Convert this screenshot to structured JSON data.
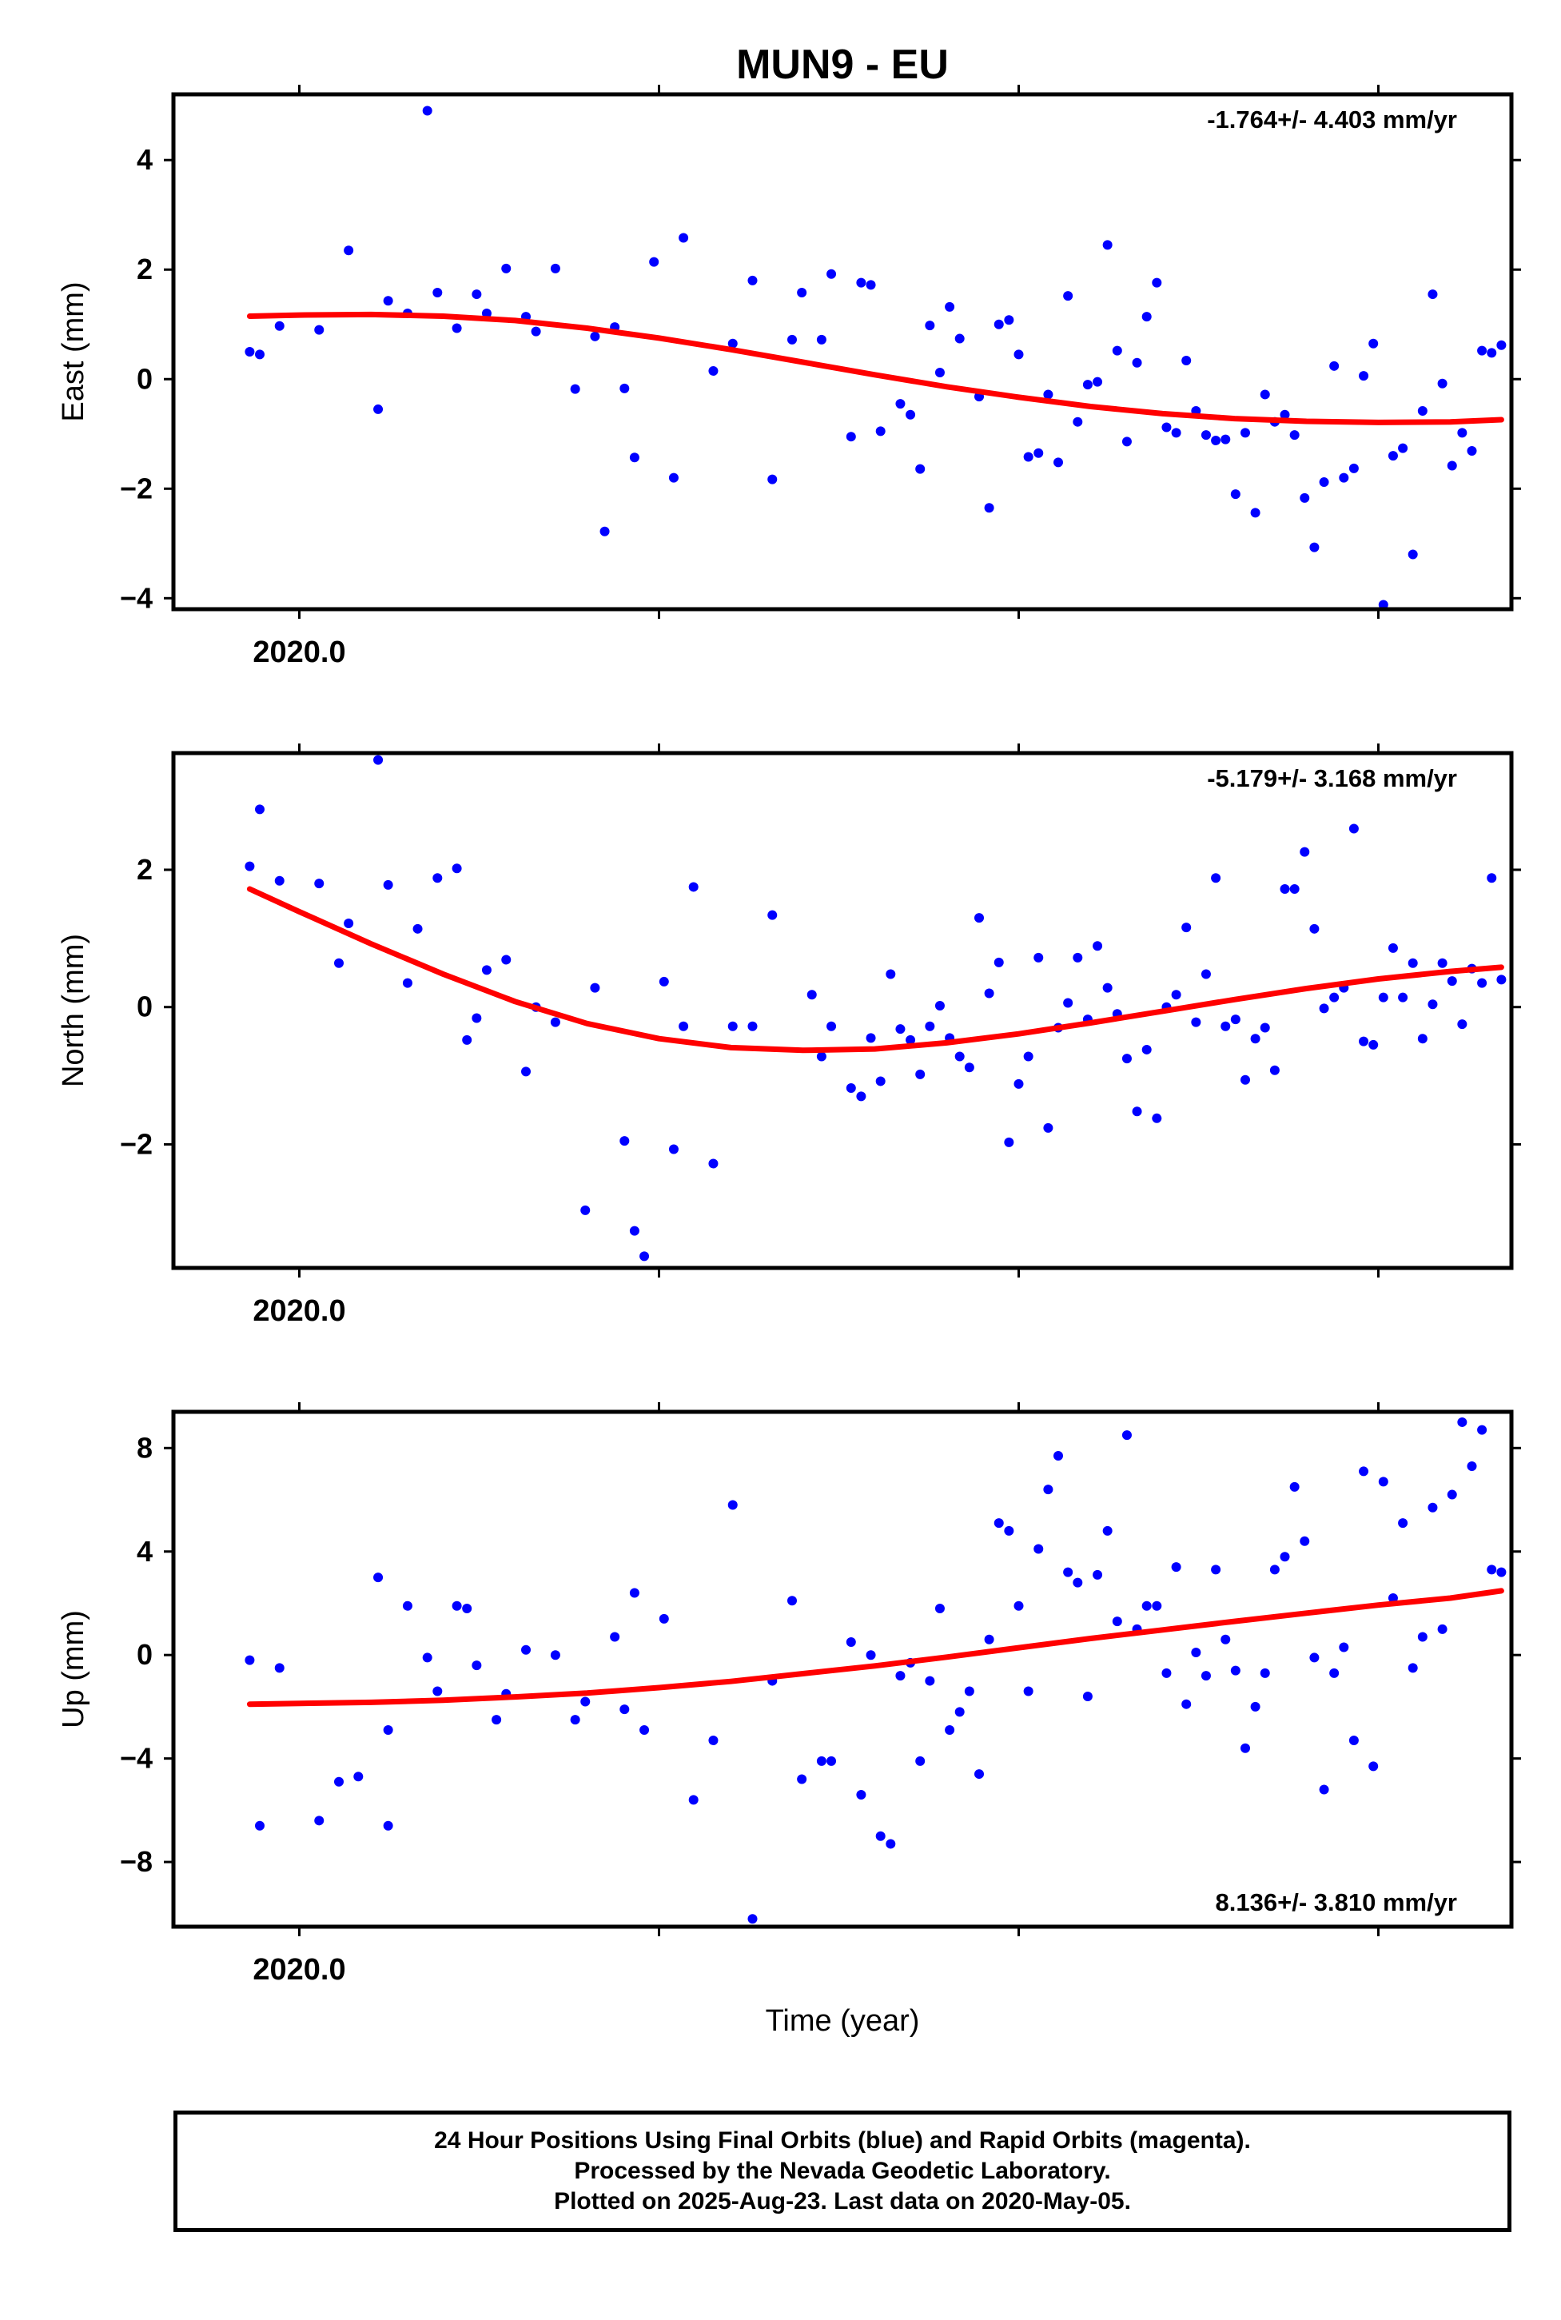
{
  "title": "MUN9 - EU",
  "xlabel": "Time (year)",
  "footer": {
    "line1": "24 Hour Positions Using Final Orbits (blue) and Rapid Orbits (magenta).",
    "line2": "Processed by the Nevada Geodetic Laboratory.",
    "line3": "Plotted on 2025-Aug-23. Last data on 2020-May-05."
  },
  "colors": {
    "points": "#0000ff",
    "fit": "#ff0000",
    "frame": "#000000"
  },
  "chart_data": [
    {
      "type": "scatter",
      "ylabel": "East (mm)",
      "rate_label": "-1.764+/- 4.403 mm/yr",
      "rate_position": "top-right",
      "xlim": [
        2019.965,
        2020.337
      ],
      "ylim": [
        -4.2,
        5.2
      ],
      "y_ticks": [
        -4,
        -2,
        0,
        2,
        4
      ],
      "x_tick_labels": [
        {
          "x": 2020.0,
          "label": "2020.0"
        }
      ],
      "x_minor_ticks": [
        2020.0,
        2020.1,
        2020.2,
        2020.3
      ],
      "series": [
        {
          "kind": "points",
          "x": [
            2019.9862,
            2019.989,
            2019.9945,
            2020.0055,
            2020.0137,
            2020.0219,
            2020.0247,
            2020.0301,
            2020.0356,
            2020.0384,
            2020.0438,
            2020.0493,
            2020.0521,
            2020.0575,
            2020.063,
            2020.0658,
            2020.0712,
            2020.0767,
            2020.0822,
            2020.0849,
            2020.0877,
            2020.0904,
            2020.0932,
            2020.0986,
            2020.1041,
            2020.1068,
            2020.1151,
            2020.1205,
            2020.126,
            2020.1315,
            2020.137,
            2020.1397,
            2020.1452,
            2020.1479,
            2020.1534,
            2020.1562,
            2020.1589,
            2020.1616,
            2020.1671,
            2020.1699,
            2020.1726,
            2020.1753,
            2020.1781,
            2020.1808,
            2020.1836,
            2020.189,
            2020.1918,
            2020.1945,
            2020.1973,
            2020.2,
            2020.2027,
            2020.2055,
            2020.2082,
            2020.211,
            2020.2137,
            2020.2164,
            2020.2192,
            2020.2219,
            2020.2247,
            2020.2274,
            2020.2301,
            2020.2329,
            2020.2356,
            2020.2384,
            2020.2411,
            2020.2438,
            2020.2466,
            2020.2493,
            2020.2521,
            2020.2548,
            2020.2575,
            2020.2603,
            2020.263,
            2020.2658,
            2020.2685,
            2020.2712,
            2020.274,
            2020.2767,
            2020.2795,
            2020.2822,
            2020.2849,
            2020.2877,
            2020.2904,
            2020.2932,
            2020.2959,
            2020.2986,
            2020.3014,
            2020.3041,
            2020.3068,
            2020.3096,
            2020.3123,
            2020.3151,
            2020.3178,
            2020.3205,
            2020.3233,
            2020.326,
            2020.3288,
            2020.3315,
            2020.3342
          ],
          "y": [
            0.5,
            0.45,
            0.97,
            0.9,
            2.35,
            -0.55,
            1.43,
            1.2,
            4.9,
            1.58,
            0.93,
            1.55,
            1.2,
            2.02,
            1.14,
            0.87,
            2.02,
            -0.18,
            0.78,
            -2.78,
            0.95,
            -0.17,
            -1.43,
            2.14,
            -1.8,
            2.58,
            0.15,
            0.65,
            1.8,
            -1.83,
            0.72,
            1.58,
            0.72,
            1.92,
            -1.05,
            1.76,
            1.72,
            -0.95,
            -0.45,
            -0.65,
            -1.64,
            0.98,
            0.12,
            1.32,
            0.74,
            -0.32,
            -2.35,
            1.0,
            1.08,
            0.45,
            -1.42,
            -1.35,
            -0.28,
            -1.52,
            1.52,
            -0.78,
            -0.1,
            -0.05,
            2.45,
            0.52,
            -1.14,
            0.3,
            1.14,
            1.76,
            -0.88,
            -0.98,
            0.34,
            -0.58,
            -1.02,
            -1.12,
            -1.1,
            -2.1,
            -0.98,
            -2.44,
            -0.28,
            -0.78,
            -0.65,
            -1.02,
            -2.17,
            -3.07,
            -1.88,
            0.24,
            -1.8,
            -1.63,
            0.06,
            0.65,
            -4.12,
            -1.4,
            -1.26,
            -3.2,
            -0.58,
            1.55,
            -0.08,
            -1.58,
            -0.98,
            -1.31,
            0.52,
            0.48,
            0.62
          ]
        },
        {
          "kind": "fit",
          "x": [
            2019.9862,
            2020.0,
            2020.02,
            2020.04,
            2020.06,
            2020.08,
            2020.1,
            2020.12,
            2020.14,
            2020.16,
            2020.18,
            2020.2,
            2020.22,
            2020.24,
            2020.26,
            2020.28,
            2020.3,
            2020.32,
            2020.3342
          ],
          "y": [
            1.15,
            1.17,
            1.18,
            1.15,
            1.07,
            0.93,
            0.75,
            0.54,
            0.31,
            0.08,
            -0.14,
            -0.33,
            -0.5,
            -0.63,
            -0.72,
            -0.77,
            -0.79,
            -0.78,
            -0.74
          ]
        }
      ]
    },
    {
      "type": "scatter",
      "ylabel": "North (mm)",
      "rate_label": "-5.179+/- 3.168 mm/yr",
      "rate_position": "top-right",
      "xlim": [
        2019.965,
        2020.337
      ],
      "ylim": [
        -3.8,
        3.7
      ],
      "y_ticks": [
        -2,
        0,
        2
      ],
      "x_tick_labels": [
        {
          "x": 2020.0,
          "label": "2020.0"
        }
      ],
      "x_minor_ticks": [
        2020.0,
        2020.1,
        2020.2,
        2020.3
      ],
      "series": [
        {
          "kind": "points",
          "x": [
            2019.9862,
            2019.989,
            2019.9945,
            2020.0055,
            2020.011,
            2020.0137,
            2020.0219,
            2020.0247,
            2020.0301,
            2020.0329,
            2020.0384,
            2020.0438,
            2020.0466,
            2020.0493,
            2020.0521,
            2020.0575,
            2020.063,
            2020.0658,
            2020.0712,
            2020.0795,
            2020.0822,
            2020.0904,
            2020.0932,
            2020.0959,
            2020.1014,
            2020.1041,
            2020.1068,
            2020.1096,
            2020.1151,
            2020.1205,
            2020.126,
            2020.1315,
            2020.1425,
            2020.1452,
            2020.1479,
            2020.1534,
            2020.1562,
            2020.1589,
            2020.1616,
            2020.1644,
            2020.1671,
            2020.1699,
            2020.1726,
            2020.1753,
            2020.1781,
            2020.1808,
            2020.1836,
            2020.1863,
            2020.189,
            2020.1918,
            2020.1945,
            2020.1973,
            2020.2,
            2020.2027,
            2020.2055,
            2020.2082,
            2020.211,
            2020.2137,
            2020.2164,
            2020.2192,
            2020.2219,
            2020.2247,
            2020.2274,
            2020.2301,
            2020.2329,
            2020.2356,
            2020.2384,
            2020.2411,
            2020.2438,
            2020.2466,
            2020.2493,
            2020.2521,
            2020.2548,
            2020.2575,
            2020.2603,
            2020.263,
            2020.2658,
            2020.2685,
            2020.2712,
            2020.274,
            2020.2767,
            2020.2795,
            2020.2822,
            2020.2849,
            2020.2877,
            2020.2904,
            2020.2932,
            2020.2959,
            2020.2986,
            2020.3014,
            2020.3041,
            2020.3068,
            2020.3096,
            2020.3123,
            2020.3151,
            2020.3178,
            2020.3205,
            2020.3233,
            2020.326,
            2020.3288,
            2020.3315,
            2020.3342
          ],
          "y": [
            2.05,
            2.88,
            1.84,
            1.8,
            0.64,
            1.22,
            3.6,
            1.78,
            0.35,
            1.14,
            1.88,
            2.02,
            -0.48,
            -0.16,
            0.54,
            0.69,
            -0.94,
            0.0,
            -0.22,
            -2.96,
            0.28,
            -1.95,
            -3.26,
            -3.63,
            0.37,
            -2.07,
            -0.28,
            1.75,
            -2.28,
            -0.28,
            -0.28,
            1.34,
            0.18,
            -0.72,
            -0.28,
            -1.18,
            -1.3,
            -0.45,
            -1.08,
            0.48,
            -0.32,
            -0.48,
            -0.98,
            -0.28,
            0.02,
            -0.45,
            -0.72,
            -0.88,
            1.3,
            0.2,
            0.65,
            -1.97,
            -1.12,
            -0.72,
            0.72,
            -1.76,
            -0.3,
            0.06,
            0.72,
            -0.18,
            0.89,
            0.28,
            -0.1,
            -0.75,
            -1.52,
            -0.62,
            -1.62,
            0.0,
            0.18,
            1.16,
            -0.22,
            0.48,
            1.88,
            -0.28,
            -0.18,
            -1.06,
            -0.46,
            -0.3,
            -0.92,
            1.72,
            1.72,
            2.26,
            1.14,
            -0.02,
            0.14,
            0.28,
            2.6,
            -0.5,
            -0.55,
            0.14,
            0.86,
            0.14,
            0.64,
            -0.46,
            0.04,
            0.64,
            0.38,
            -0.25,
            0.56,
            0.35,
            1.88,
            0.4
          ]
        },
        {
          "kind": "fit",
          "x": [
            2019.9862,
            2020.0,
            2020.02,
            2020.04,
            2020.06,
            2020.08,
            2020.1,
            2020.12,
            2020.14,
            2020.16,
            2020.18,
            2020.2,
            2020.22,
            2020.24,
            2020.26,
            2020.28,
            2020.3,
            2020.32,
            2020.3342
          ],
          "y": [
            1.72,
            1.39,
            0.92,
            0.48,
            0.08,
            -0.24,
            -0.46,
            -0.59,
            -0.63,
            -0.61,
            -0.52,
            -0.39,
            -0.23,
            -0.06,
            0.11,
            0.27,
            0.41,
            0.52,
            0.58
          ]
        }
      ]
    },
    {
      "type": "scatter",
      "ylabel": "Up (mm)",
      "rate_label": "8.136+/- 3.810 mm/yr",
      "rate_position": "bottom-right",
      "xlim": [
        2019.965,
        2020.337
      ],
      "ylim": [
        -10.5,
        9.4
      ],
      "y_ticks": [
        -8,
        -4,
        0,
        4,
        8
      ],
      "x_tick_labels": [
        {
          "x": 2020.0,
          "label": "2020.0"
        }
      ],
      "x_minor_ticks": [
        2020.0,
        2020.1,
        2020.2,
        2020.3
      ],
      "series": [
        {
          "kind": "points",
          "x": [
            2019.9862,
            2019.989,
            2019.9945,
            2020.0055,
            2020.011,
            2020.0164,
            2020.0219,
            2020.0247,
            2020.0247,
            2020.0301,
            2020.0356,
            2020.0384,
            2020.0438,
            2020.0466,
            2020.0493,
            2020.0548,
            2020.0575,
            2020.063,
            2020.0712,
            2020.0767,
            2020.0795,
            2020.0877,
            2020.0904,
            2020.0932,
            2020.0959,
            2020.1014,
            2020.1096,
            2020.1151,
            2020.1205,
            2020.126,
            2020.1315,
            2020.137,
            2020.1397,
            2020.1452,
            2020.1479,
            2020.1534,
            2020.1562,
            2020.1589,
            2020.1616,
            2020.1644,
            2020.1671,
            2020.1699,
            2020.1726,
            2020.1753,
            2020.1781,
            2020.1808,
            2020.1836,
            2020.1863,
            2020.189,
            2020.1918,
            2020.1945,
            2020.1973,
            2020.2,
            2020.2027,
            2020.2055,
            2020.2082,
            2020.211,
            2020.2137,
            2020.2164,
            2020.2192,
            2020.2219,
            2020.2247,
            2020.2274,
            2020.2301,
            2020.2329,
            2020.2356,
            2020.2384,
            2020.2411,
            2020.2438,
            2020.2466,
            2020.2493,
            2020.2521,
            2020.2548,
            2020.2575,
            2020.2603,
            2020.263,
            2020.2658,
            2020.2685,
            2020.2712,
            2020.274,
            2020.2767,
            2020.2795,
            2020.2822,
            2020.2849,
            2020.2877,
            2020.2904,
            2020.2932,
            2020.2959,
            2020.2986,
            2020.3014,
            2020.3041,
            2020.3068,
            2020.3096,
            2020.3123,
            2020.3151,
            2020.3178,
            2020.3205,
            2020.3233,
            2020.326,
            2020.3288,
            2020.3315,
            2020.3342
          ],
          "y": [
            -0.2,
            -6.6,
            -0.5,
            -6.4,
            -4.9,
            -4.7,
            3.0,
            -2.9,
            -6.6,
            1.9,
            -0.1,
            -1.4,
            1.9,
            1.8,
            -0.4,
            -2.5,
            -1.5,
            0.2,
            0.0,
            -2.5,
            -1.8,
            0.7,
            -2.1,
            2.4,
            -2.9,
            1.4,
            -5.6,
            -3.3,
            5.8,
            -10.2,
            -1.0,
            2.1,
            -4.8,
            -4.1,
            -4.1,
            0.5,
            -5.4,
            0.0,
            -7.0,
            -7.3,
            -0.8,
            -0.3,
            -4.1,
            -1.0,
            1.8,
            -2.9,
            -2.2,
            -1.4,
            -4.6,
            0.6,
            5.1,
            4.8,
            1.9,
            -1.4,
            4.1,
            6.4,
            7.7,
            3.2,
            2.8,
            -1.6,
            3.1,
            4.8,
            1.3,
            8.5,
            1.0,
            1.9,
            1.9,
            -0.7,
            3.4,
            -1.9,
            0.1,
            -0.8,
            3.3,
            0.6,
            -0.6,
            -3.6,
            -2.0,
            -0.7,
            3.3,
            3.8,
            6.5,
            4.4,
            -0.1,
            -5.2,
            -0.7,
            0.3,
            -3.3,
            7.1,
            -4.3,
            6.7,
            2.2,
            5.1,
            -0.5,
            0.7,
            5.7,
            1.0,
            6.2,
            9.0,
            7.3,
            8.7,
            3.3,
            3.2
          ]
        },
        {
          "kind": "fit",
          "x": [
            2019.9862,
            2020.0,
            2020.02,
            2020.04,
            2020.06,
            2020.08,
            2020.1,
            2020.12,
            2020.14,
            2020.16,
            2020.18,
            2020.2,
            2020.22,
            2020.24,
            2020.26,
            2020.28,
            2020.3,
            2020.32,
            2020.3342
          ],
          "y": [
            -1.9,
            -1.87,
            -1.83,
            -1.75,
            -1.62,
            -1.47,
            -1.26,
            -1.02,
            -0.72,
            -0.42,
            -0.08,
            0.28,
            0.64,
            0.97,
            1.3,
            1.62,
            1.93,
            2.2,
            2.48
          ]
        }
      ]
    }
  ]
}
